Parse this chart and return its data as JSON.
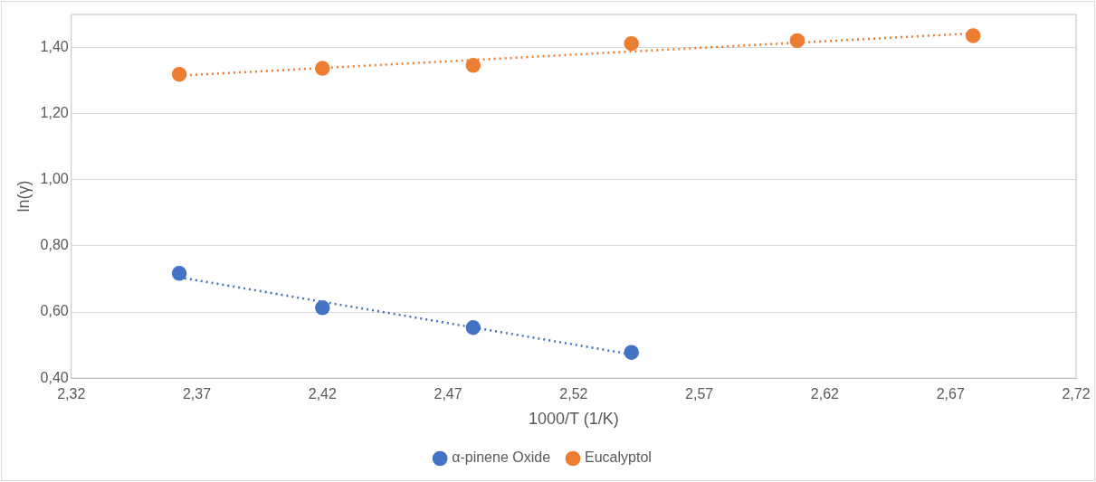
{
  "chart_data": {
    "type": "scatter",
    "xlabel": "1000/T (1/K)",
    "ylabel": "ln(γ)",
    "xlim": [
      2.32,
      2.72
    ],
    "ylim": [
      0.4,
      1.5
    ],
    "xticks": [
      {
        "value": 2.32,
        "label": "2,32"
      },
      {
        "value": 2.37,
        "label": "2,37"
      },
      {
        "value": 2.42,
        "label": "2,42"
      },
      {
        "value": 2.47,
        "label": "2,47"
      },
      {
        "value": 2.52,
        "label": "2,52"
      },
      {
        "value": 2.57,
        "label": "2,57"
      },
      {
        "value": 2.62,
        "label": "2,62"
      },
      {
        "value": 2.67,
        "label": "2,67"
      },
      {
        "value": 2.72,
        "label": "2,72"
      }
    ],
    "yticks": [
      {
        "value": 0.4,
        "label": "0,40"
      },
      {
        "value": 0.6,
        "label": "0,60"
      },
      {
        "value": 0.8,
        "label": "0,80"
      },
      {
        "value": 1.0,
        "label": "1,00"
      },
      {
        "value": 1.2,
        "label": "1,20"
      },
      {
        "value": 1.4,
        "label": "1,40"
      }
    ],
    "grid": "y",
    "legend": "bottom",
    "series": [
      {
        "name": "α-pinene Oxide",
        "color": "#4472c4",
        "marker": "circle",
        "x": [
          2.363,
          2.42,
          2.48,
          2.543
        ],
        "values": [
          0.717,
          0.613,
          0.553,
          0.478
        ]
      },
      {
        "name": "Eucalyptol",
        "color": "#ed7d31",
        "marker": "circle",
        "x": [
          2.363,
          2.42,
          2.48,
          2.543,
          2.609,
          2.679
        ],
        "values": [
          1.319,
          1.337,
          1.346,
          1.412,
          1.421,
          1.436
        ]
      },
      {
        "type": "line",
        "color": "#4472c4",
        "line_style": "dotted",
        "marker": "none",
        "x": [
          2.363,
          2.543
        ],
        "values": [
          0.705,
          0.472
        ]
      },
      {
        "type": "line",
        "color": "#ed7d31",
        "line_style": "dotted",
        "marker": "none",
        "x": [
          2.363,
          2.679
        ],
        "values": [
          1.315,
          1.443
        ]
      }
    ]
  }
}
